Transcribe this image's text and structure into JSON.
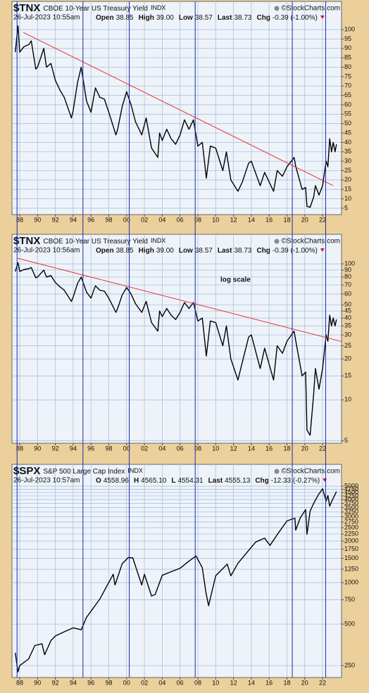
{
  "chart_data": [
    {
      "type": "line",
      "symbol": "$TNX",
      "title": "CBOE 10-Year US Treasury Yield",
      "exchange": "INDX",
      "date": "26-Jul-2023 10:55am",
      "quote": [
        {
          "label": "Open",
          "value": "38.85"
        },
        {
          "label": "High",
          "value": "39.00"
        },
        {
          "label": "Low",
          "value": "38.57"
        },
        {
          "label": "Last",
          "value": "38.73"
        },
        {
          "label": "Chg",
          "value": "-0.39 (-1.00%)"
        }
      ],
      "credit": "©StockCharts.com",
      "log_scale": false,
      "grid": true,
      "color": "#000000",
      "x": [
        1987.5,
        1987.8,
        1988.0,
        1988.5,
        1989.0,
        1989.3,
        1989.8,
        1990.0,
        1990.7,
        1991.0,
        1991.5,
        1992.0,
        1992.5,
        1993.0,
        1993.8,
        1994.0,
        1994.5,
        1994.9,
        1995.5,
        1996.0,
        1996.5,
        1997.0,
        1997.5,
        1998.0,
        1998.8,
        1999.0,
        1999.5,
        2000.0,
        2000.5,
        2001.0,
        2001.7,
        2002.2,
        2002.8,
        2003.5,
        2003.7,
        2004.0,
        2004.5,
        2005.0,
        2005.5,
        2006.0,
        2006.5,
        2007.0,
        2007.5,
        2008.0,
        2008.5,
        2008.95,
        2009.4,
        2010.0,
        2010.8,
        2011.2,
        2011.7,
        2012.5,
        2013.0,
        2013.7,
        2014.0,
        2015.0,
        2015.5,
        2016.5,
        2016.9,
        2017.5,
        2018.0,
        2018.8,
        2019.0,
        2019.7,
        2020.1,
        2020.25,
        2020.6,
        2021.0,
        2021.2,
        2021.6,
        2022.0,
        2022.4,
        2022.6,
        2022.8,
        2023.0,
        2023.2,
        2023.4,
        2023.56
      ],
      "values": [
        88,
        102,
        88,
        91,
        92,
        94,
        79,
        80,
        90,
        80,
        82,
        73,
        68,
        64,
        53,
        57,
        72,
        80,
        62,
        56,
        69,
        64,
        63,
        56,
        44,
        47,
        59,
        67,
        60,
        51,
        44,
        53,
        37,
        32,
        45,
        41,
        47,
        42,
        39,
        44,
        52,
        47,
        52,
        38,
        40,
        21,
        38,
        37,
        25,
        35,
        20,
        14,
        19,
        29,
        30,
        17,
        24,
        14,
        25,
        22,
        27,
        32,
        27,
        15,
        16,
        6,
        5.5,
        11,
        17,
        12,
        17,
        30,
        27,
        42,
        35,
        40,
        35,
        39
      ],
      "xlim": [
        1987.13,
        2024.13
      ],
      "ylim": [
        1.6,
        115
      ],
      "xticks": [
        {
          "value": 1988,
          "label": "88"
        },
        {
          "value": 1990,
          "label": "90"
        },
        {
          "value": 1992,
          "label": "92"
        },
        {
          "value": 1994,
          "label": "94"
        },
        {
          "value": 1996,
          "label": "96"
        },
        {
          "value": 1998,
          "label": "98"
        },
        {
          "value": 2000,
          "label": "00"
        },
        {
          "value": 2002,
          "label": "02"
        },
        {
          "value": 2004,
          "label": "04"
        },
        {
          "value": 2006,
          "label": "06"
        },
        {
          "value": 2008,
          "label": "08"
        },
        {
          "value": 2010,
          "label": "10"
        },
        {
          "value": 2012,
          "label": "12"
        },
        {
          "value": 2014,
          "label": "14"
        },
        {
          "value": 2016,
          "label": "16"
        },
        {
          "value": 2018,
          "label": "18"
        },
        {
          "value": 2020,
          "label": "20"
        },
        {
          "value": 2022,
          "label": "22"
        }
      ],
      "yticks": [
        5,
        10,
        15,
        20,
        25,
        30,
        35,
        40,
        45,
        50,
        55,
        60,
        65,
        70,
        75,
        80,
        85,
        90,
        95,
        100
      ],
      "trendline": {
        "x": [
          1988.4,
          2023.2
        ],
        "values": [
          98.5,
          17
        ],
        "color": "#e8312f"
      }
    },
    {
      "type": "line",
      "symbol": "$TNX",
      "title": "CBOE 10-Year US Treasury Yield",
      "exchange": "INDX",
      "date": "26-Jul-2023 10:56am",
      "quote": [
        {
          "label": "Open",
          "value": "38.85"
        },
        {
          "label": "High",
          "value": "39.00"
        },
        {
          "label": "Low",
          "value": "38.57"
        },
        {
          "label": "Last",
          "value": "38.73"
        },
        {
          "label": "Chg",
          "value": "-0.39 (-1.00%)"
        }
      ],
      "credit": "©StockCharts.com",
      "log_scale": true,
      "grid": true,
      "color": "#000000",
      "annotation": "log scale",
      "x": [
        1987.5,
        1987.8,
        1988.0,
        1988.5,
        1989.0,
        1989.3,
        1989.8,
        1990.0,
        1990.7,
        1991.0,
        1991.5,
        1992.0,
        1992.5,
        1993.0,
        1993.8,
        1994.0,
        1994.5,
        1994.9,
        1995.5,
        1996.0,
        1996.5,
        1997.0,
        1997.5,
        1998.0,
        1998.8,
        1999.0,
        1999.5,
        2000.0,
        2000.5,
        2001.0,
        2001.7,
        2002.2,
        2002.8,
        2003.5,
        2003.7,
        2004.0,
        2004.5,
        2005.0,
        2005.5,
        2006.0,
        2006.5,
        2007.0,
        2007.5,
        2008.0,
        2008.5,
        2008.95,
        2009.4,
        2010.0,
        2010.8,
        2011.2,
        2011.7,
        2012.5,
        2013.0,
        2013.7,
        2014.0,
        2015.0,
        2015.5,
        2016.5,
        2016.9,
        2017.5,
        2018.0,
        2018.8,
        2019.0,
        2019.7,
        2020.1,
        2020.25,
        2020.6,
        2021.0,
        2021.2,
        2021.6,
        2022.0,
        2022.4,
        2022.6,
        2022.8,
        2023.0,
        2023.2,
        2023.4,
        2023.56
      ],
      "values": [
        88,
        102,
        88,
        91,
        92,
        94,
        79,
        80,
        90,
        80,
        82,
        73,
        68,
        64,
        53,
        57,
        72,
        80,
        62,
        56,
        69,
        64,
        63,
        56,
        44,
        47,
        59,
        67,
        60,
        51,
        44,
        53,
        37,
        32,
        45,
        41,
        47,
        42,
        39,
        44,
        52,
        47,
        52,
        38,
        40,
        21,
        38,
        37,
        25,
        35,
        20,
        14,
        19,
        29,
        30,
        17,
        24,
        14,
        25,
        22,
        27,
        32,
        27,
        15,
        16,
        6,
        5.5,
        11,
        17,
        12,
        17,
        30,
        27,
        42,
        35,
        40,
        35,
        39
      ],
      "xlim": [
        1987.13,
        2024.13
      ],
      "ylim": [
        4.8,
        165
      ],
      "xticks": [
        {
          "value": 1988,
          "label": "88"
        },
        {
          "value": 1990,
          "label": "90"
        },
        {
          "value": 1992,
          "label": "92"
        },
        {
          "value": 1994,
          "label": "94"
        },
        {
          "value": 1996,
          "label": "96"
        },
        {
          "value": 1998,
          "label": "98"
        },
        {
          "value": 2000,
          "label": "00"
        },
        {
          "value": 2002,
          "label": "02"
        },
        {
          "value": 2004,
          "label": "04"
        },
        {
          "value": 2006,
          "label": "06"
        },
        {
          "value": 2008,
          "label": "08"
        },
        {
          "value": 2010,
          "label": "10"
        },
        {
          "value": 2012,
          "label": "12"
        },
        {
          "value": 2014,
          "label": "14"
        },
        {
          "value": 2016,
          "label": "16"
        },
        {
          "value": 2018,
          "label": "18"
        },
        {
          "value": 2020,
          "label": "20"
        },
        {
          "value": 2022,
          "label": "22"
        }
      ],
      "yticks": [
        5,
        10,
        15,
        20,
        25,
        30,
        35,
        40,
        45,
        50,
        60,
        70,
        80,
        90,
        100
      ],
      "trendline": {
        "x": [
          1987.75,
          2024.1
        ],
        "values": [
          110,
          26.9
        ],
        "color": "#e8312f"
      }
    },
    {
      "type": "line",
      "symbol": "$SPX",
      "title": "S&P 500 Large Cap Index",
      "exchange": "INDX",
      "date": "26-Jul-2023 10:57am",
      "quote": [
        {
          "label": "O",
          "value": "4558.96"
        },
        {
          "label": "H",
          "value": "4565.10"
        },
        {
          "label": "L",
          "value": "4554.31"
        },
        {
          "label": "Last",
          "value": "4555.13"
        },
        {
          "label": "Chg",
          "value": "-12.33 (-0.27%)"
        }
      ],
      "credit": "©StockCharts.com",
      "log_scale": true,
      "grid": true,
      "color": "#000000",
      "x": [
        1987.5,
        1987.8,
        1988.0,
        1989.0,
        1989.7,
        1990.5,
        1990.8,
        1991.5,
        1992.0,
        1993.0,
        1994.0,
        1994.9,
        1995.5,
        1996.0,
        1997.0,
        1997.8,
        1998.5,
        1998.7,
        1999.5,
        2000.2,
        2000.7,
        2001.3,
        2001.7,
        2002.0,
        2002.8,
        2003.2,
        2004.0,
        2005.0,
        2006.0,
        2007.0,
        2007.8,
        2008.5,
        2008.9,
        2009.2,
        2010.0,
        2011.3,
        2011.7,
        2012.5,
        2013.5,
        2014.5,
        2015.5,
        2016.1,
        2017.0,
        2018.0,
        2018.9,
        2018.98,
        2019.5,
        2020.1,
        2020.25,
        2020.6,
        2021.0,
        2021.5,
        2022.0,
        2022.4,
        2022.6,
        2022.8,
        2023.0,
        2023.56
      ],
      "values": [
        310,
        225,
        250,
        280,
        350,
        360,
        300,
        380,
        410,
        440,
        470,
        455,
        560,
        620,
        760,
        950,
        1150,
        960,
        1370,
        1520,
        1510,
        1150,
        960,
        1150,
        800,
        820,
        1130,
        1200,
        1270,
        1430,
        1560,
        1280,
        850,
        680,
        1120,
        1360,
        1120,
        1380,
        1650,
        1970,
        2100,
        1860,
        2270,
        2800,
        2930,
        2400,
        2950,
        3380,
        2240,
        3300,
        3750,
        4300,
        4790,
        3900,
        4280,
        3580,
        3850,
        4570
      ],
      "xlim": [
        1987.13,
        2024.13
      ],
      "ylim": [
        205,
        7200
      ],
      "xticks": [
        {
          "value": 1988,
          "label": "88"
        },
        {
          "value": 1990,
          "label": "90"
        },
        {
          "value": 1992,
          "label": "92"
        },
        {
          "value": 1994,
          "label": "94"
        },
        {
          "value": 1996,
          "label": "96"
        },
        {
          "value": 1998,
          "label": "98"
        },
        {
          "value": 2000,
          "label": "00"
        },
        {
          "value": 2002,
          "label": "02"
        },
        {
          "value": 2004,
          "label": "04"
        },
        {
          "value": 2006,
          "label": "06"
        },
        {
          "value": 2008,
          "label": "08"
        },
        {
          "value": 2010,
          "label": "10"
        },
        {
          "value": 2012,
          "label": "12"
        },
        {
          "value": 2014,
          "label": "14"
        },
        {
          "value": 2016,
          "label": "16"
        },
        {
          "value": 2018,
          "label": "18"
        },
        {
          "value": 2020,
          "label": "20"
        },
        {
          "value": 2022,
          "label": "22"
        }
      ],
      "yticks": [
        250,
        500,
        750,
        1000,
        1250,
        1500,
        1750,
        2000,
        2250,
        2500,
        2750,
        3000,
        3250,
        3500,
        3750,
        4000,
        4250,
        4500,
        4750,
        5000
      ]
    }
  ],
  "vertical_lines": {
    "x": [
      1987.7,
      1995.1,
      2000.3,
      2007.7,
      2018.6,
      2022.35
    ],
    "color": "#1a2aa8"
  }
}
